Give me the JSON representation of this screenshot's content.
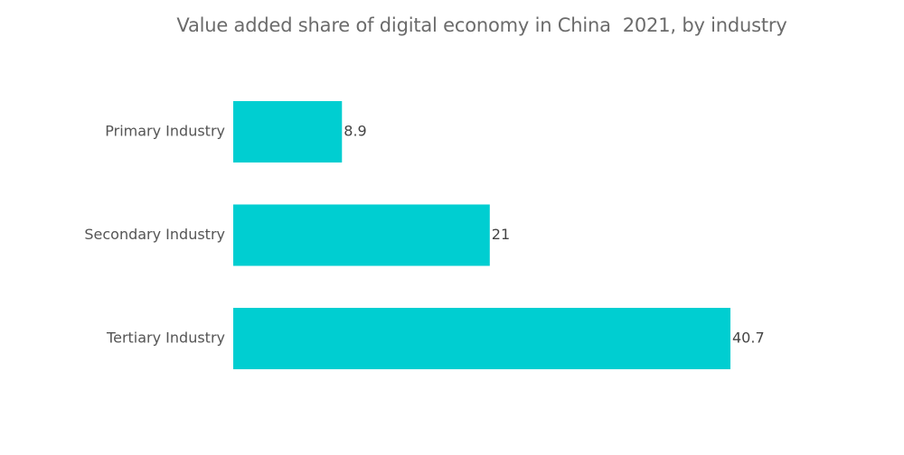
{
  "chart_data": {
    "type": "bar",
    "orientation": "horizontal",
    "title": "Value added share of digital economy in China  2021, by industry",
    "xlabel": "",
    "ylabel": "",
    "categories": [
      "Primary Industry",
      "Secondary Industry",
      "Tertiary Industry"
    ],
    "values": [
      8.9,
      21,
      40.7
    ],
    "value_labels": [
      "8.9",
      "21",
      "40.7"
    ],
    "xlim": [
      0,
      40.7
    ],
    "grid": false,
    "legend": "none",
    "bar_color": "#00CED1"
  }
}
